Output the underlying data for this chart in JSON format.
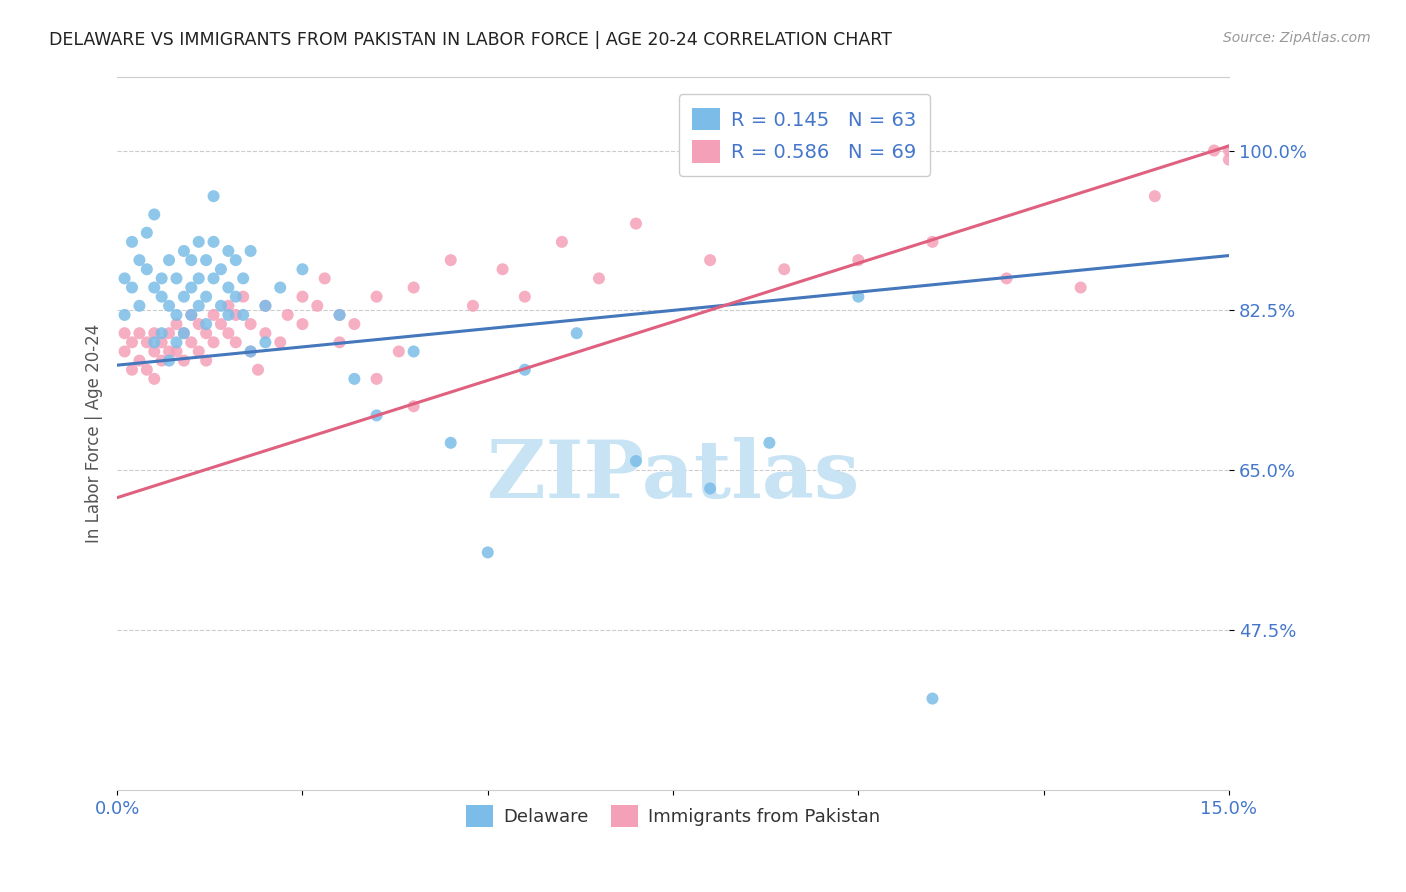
{
  "title": "DELAWARE VS IMMIGRANTS FROM PAKISTAN IN LABOR FORCE | AGE 20-24 CORRELATION CHART",
  "source": "Source: ZipAtlas.com",
  "ylabel": "In Labor Force | Age 20-24",
  "x_min": 0.0,
  "x_max": 0.15,
  "y_min": 0.3,
  "y_max": 1.08,
  "x_ticks": [
    0.0,
    0.025,
    0.05,
    0.075,
    0.1,
    0.125,
    0.15
  ],
  "x_tick_labels": [
    "0.0%",
    "",
    "",
    "",
    "",
    "",
    "15.0%"
  ],
  "y_ticks": [
    0.475,
    0.65,
    0.825,
    1.0
  ],
  "y_tick_labels": [
    "47.5%",
    "65.0%",
    "82.5%",
    "100.0%"
  ],
  "delaware_color": "#7bbde8",
  "pakistan_color": "#f4a0b8",
  "delaware_line_color": "#4477bb",
  "pakistan_line_color": "#e06080",
  "r_delaware": 0.145,
  "n_delaware": 63,
  "r_pakistan": 0.586,
  "n_pakistan": 69,
  "watermark": "ZIPatlas",
  "watermark_color": "#c8e4f4",
  "del_line_x0": 0.0,
  "del_line_y0": 0.765,
  "del_line_x1": 0.15,
  "del_line_y1": 0.885,
  "pak_line_x0": 0.0,
  "pak_line_y0": 0.62,
  "pak_line_x1": 0.15,
  "pak_line_y1": 1.005,
  "delaware_pts": [
    [
      0.001,
      0.86
    ],
    [
      0.001,
      0.82
    ],
    [
      0.002,
      0.9
    ],
    [
      0.002,
      0.85
    ],
    [
      0.003,
      0.88
    ],
    [
      0.003,
      0.83
    ],
    [
      0.004,
      0.91
    ],
    [
      0.004,
      0.87
    ],
    [
      0.005,
      0.85
    ],
    [
      0.005,
      0.79
    ],
    [
      0.005,
      0.93
    ],
    [
      0.006,
      0.84
    ],
    [
      0.006,
      0.8
    ],
    [
      0.006,
      0.86
    ],
    [
      0.007,
      0.88
    ],
    [
      0.007,
      0.83
    ],
    [
      0.007,
      0.77
    ],
    [
      0.008,
      0.86
    ],
    [
      0.008,
      0.82
    ],
    [
      0.008,
      0.79
    ],
    [
      0.009,
      0.89
    ],
    [
      0.009,
      0.84
    ],
    [
      0.009,
      0.8
    ],
    [
      0.01,
      0.88
    ],
    [
      0.01,
      0.85
    ],
    [
      0.01,
      0.82
    ],
    [
      0.011,
      0.9
    ],
    [
      0.011,
      0.86
    ],
    [
      0.011,
      0.83
    ],
    [
      0.012,
      0.88
    ],
    [
      0.012,
      0.84
    ],
    [
      0.012,
      0.81
    ],
    [
      0.013,
      0.9
    ],
    [
      0.013,
      0.86
    ],
    [
      0.013,
      0.95
    ],
    [
      0.014,
      0.87
    ],
    [
      0.014,
      0.83
    ],
    [
      0.015,
      0.89
    ],
    [
      0.015,
      0.85
    ],
    [
      0.015,
      0.82
    ],
    [
      0.016,
      0.88
    ],
    [
      0.016,
      0.84
    ],
    [
      0.017,
      0.86
    ],
    [
      0.017,
      0.82
    ],
    [
      0.018,
      0.89
    ],
    [
      0.018,
      0.78
    ],
    [
      0.02,
      0.83
    ],
    [
      0.02,
      0.79
    ],
    [
      0.022,
      0.85
    ],
    [
      0.025,
      0.87
    ],
    [
      0.03,
      0.82
    ],
    [
      0.032,
      0.75
    ],
    [
      0.035,
      0.71
    ],
    [
      0.04,
      0.78
    ],
    [
      0.045,
      0.68
    ],
    [
      0.05,
      0.56
    ],
    [
      0.055,
      0.76
    ],
    [
      0.062,
      0.8
    ],
    [
      0.07,
      0.66
    ],
    [
      0.08,
      0.63
    ],
    [
      0.088,
      0.68
    ],
    [
      0.1,
      0.84
    ],
    [
      0.11,
      0.4
    ]
  ],
  "pakistan_pts": [
    [
      0.001,
      0.78
    ],
    [
      0.001,
      0.8
    ],
    [
      0.002,
      0.79
    ],
    [
      0.002,
      0.76
    ],
    [
      0.003,
      0.8
    ],
    [
      0.003,
      0.77
    ],
    [
      0.004,
      0.79
    ],
    [
      0.004,
      0.76
    ],
    [
      0.005,
      0.8
    ],
    [
      0.005,
      0.78
    ],
    [
      0.005,
      0.75
    ],
    [
      0.006,
      0.79
    ],
    [
      0.006,
      0.77
    ],
    [
      0.007,
      0.8
    ],
    [
      0.007,
      0.78
    ],
    [
      0.008,
      0.81
    ],
    [
      0.008,
      0.78
    ],
    [
      0.009,
      0.8
    ],
    [
      0.009,
      0.77
    ],
    [
      0.01,
      0.82
    ],
    [
      0.01,
      0.79
    ],
    [
      0.011,
      0.81
    ],
    [
      0.011,
      0.78
    ],
    [
      0.012,
      0.8
    ],
    [
      0.012,
      0.77
    ],
    [
      0.013,
      0.82
    ],
    [
      0.013,
      0.79
    ],
    [
      0.014,
      0.81
    ],
    [
      0.015,
      0.83
    ],
    [
      0.015,
      0.8
    ],
    [
      0.016,
      0.82
    ],
    [
      0.016,
      0.79
    ],
    [
      0.017,
      0.84
    ],
    [
      0.018,
      0.81
    ],
    [
      0.018,
      0.78
    ],
    [
      0.019,
      0.76
    ],
    [
      0.02,
      0.83
    ],
    [
      0.02,
      0.8
    ],
    [
      0.022,
      0.79
    ],
    [
      0.023,
      0.82
    ],
    [
      0.025,
      0.84
    ],
    [
      0.025,
      0.81
    ],
    [
      0.027,
      0.83
    ],
    [
      0.028,
      0.86
    ],
    [
      0.03,
      0.82
    ],
    [
      0.03,
      0.79
    ],
    [
      0.032,
      0.81
    ],
    [
      0.035,
      0.75
    ],
    [
      0.035,
      0.84
    ],
    [
      0.038,
      0.78
    ],
    [
      0.04,
      0.85
    ],
    [
      0.04,
      0.72
    ],
    [
      0.045,
      0.88
    ],
    [
      0.048,
      0.83
    ],
    [
      0.052,
      0.87
    ],
    [
      0.055,
      0.84
    ],
    [
      0.06,
      0.9
    ],
    [
      0.065,
      0.86
    ],
    [
      0.07,
      0.92
    ],
    [
      0.08,
      0.88
    ],
    [
      0.09,
      0.87
    ],
    [
      0.1,
      0.88
    ],
    [
      0.11,
      0.9
    ],
    [
      0.12,
      0.86
    ],
    [
      0.13,
      0.85
    ],
    [
      0.14,
      0.95
    ],
    [
      0.148,
      1.0
    ],
    [
      0.15,
      0.99
    ],
    [
      0.15,
      1.0
    ]
  ]
}
